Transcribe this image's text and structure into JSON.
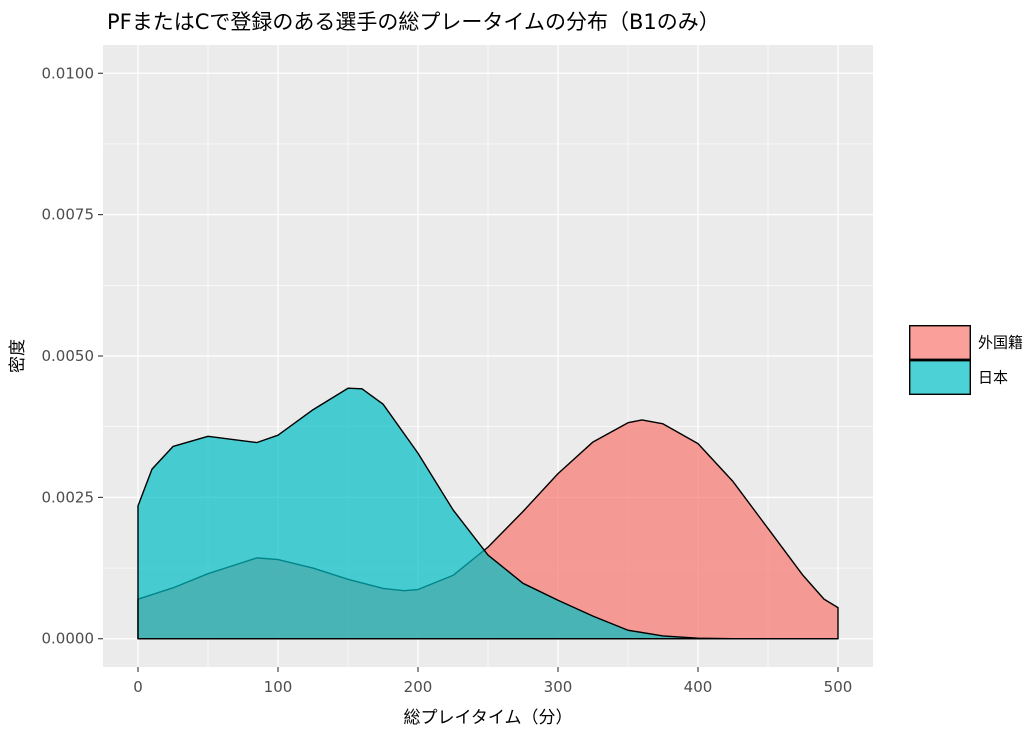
{
  "chart_data": {
    "type": "area",
    "title": "PFまたはCで登録のある選手の総プレータイムの分布（B1のみ）",
    "xlabel": "総プレイタイム（分）",
    "ylabel": "密度",
    "xlim": [
      -25,
      525
    ],
    "ylim": [
      -0.0005,
      0.0105
    ],
    "x_ticks": [
      0,
      100,
      200,
      300,
      400,
      500
    ],
    "x_tick_labels": [
      "0",
      "100",
      "200",
      "300",
      "400",
      "500"
    ],
    "y_ticks": [
      0,
      0.0025,
      0.005,
      0.0075,
      0.01
    ],
    "y_tick_labels": [
      "0.0000",
      "0.0025",
      "0.0050",
      "0.0075",
      "0.0100"
    ],
    "grid": true,
    "legend_position": "right",
    "series": [
      {
        "name": "外国籍",
        "color": "#F8766D",
        "points": [
          [
            0,
            0.0007
          ],
          [
            25,
            0.0009
          ],
          [
            50,
            0.00115
          ],
          [
            75,
            0.00135
          ],
          [
            85,
            0.00143
          ],
          [
            100,
            0.0014
          ],
          [
            125,
            0.00125
          ],
          [
            150,
            0.00105
          ],
          [
            175,
            0.00089
          ],
          [
            190,
            0.00085
          ],
          [
            200,
            0.00087
          ],
          [
            225,
            0.00112
          ],
          [
            250,
            0.00162
          ],
          [
            275,
            0.00225
          ],
          [
            300,
            0.00292
          ],
          [
            325,
            0.00348
          ],
          [
            350,
            0.00382
          ],
          [
            360,
            0.00387
          ],
          [
            375,
            0.0038
          ],
          [
            400,
            0.00345
          ],
          [
            425,
            0.00278
          ],
          [
            450,
            0.00195
          ],
          [
            475,
            0.00112
          ],
          [
            490,
            0.0007
          ],
          [
            500,
            0.00055
          ]
        ]
      },
      {
        "name": "日本",
        "color": "#00BFC4",
        "points": [
          [
            0,
            0.00235
          ],
          [
            10,
            0.003
          ],
          [
            25,
            0.0034
          ],
          [
            50,
            0.00358
          ],
          [
            75,
            0.0035
          ],
          [
            85,
            0.00347
          ],
          [
            100,
            0.0036
          ],
          [
            125,
            0.00405
          ],
          [
            150,
            0.00443
          ],
          [
            160,
            0.00442
          ],
          [
            175,
            0.00415
          ],
          [
            200,
            0.00328
          ],
          [
            225,
            0.00228
          ],
          [
            250,
            0.00148
          ],
          [
            275,
            0.00098
          ],
          [
            300,
            0.00068
          ],
          [
            325,
            0.0004
          ],
          [
            350,
            0.00015
          ],
          [
            375,
            5e-05
          ],
          [
            400,
            1e-05
          ],
          [
            425,
            0.0
          ],
          [
            450,
            0.0
          ],
          [
            475,
            0.0
          ],
          [
            500,
            0.0
          ]
        ]
      }
    ]
  }
}
